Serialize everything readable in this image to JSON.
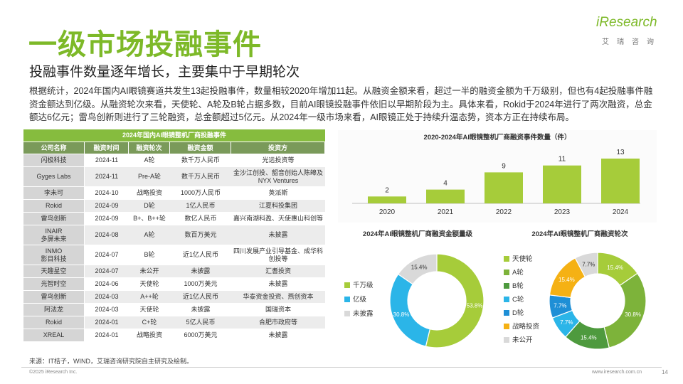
{
  "header": {
    "title": "一级市场投融事件",
    "subtitle": "投融事件数量逐年增长，主要集中于早期轮次",
    "logo_main": "iResearch",
    "logo_sub": "艾瑞咨询"
  },
  "paragraph": "根据统计，2024年国内AI眼镜赛道共发生13起投融事件，数量相较2020年增加11起。从融资金额来看，超过一半的融资金额为千万级别，但也有4起投融事件融资金额达到亿级。从融资轮次来看，天使轮、A轮及B轮占据多数，目前AI眼镜投融事件依旧以早期阶段为主。具体来看，Rokid于2024年进行了两次融资，总金额达6亿元；雷鸟创新则进行了三轮融资，总金额超过5亿元。从2024年一级市场来看，AI眼镜正处于持续升温态势，资本方正在持续布局。",
  "table": {
    "caption": "2024年国内AI眼镜整机厂商投融事件",
    "headers": [
      "公司名称",
      "融资时间",
      "融资轮次",
      "融资金额",
      "投资方"
    ],
    "rows": [
      [
        "闪极科技",
        "2024-11",
        "A轮",
        "数千万人民币",
        "光远投资等"
      ],
      [
        "Gyges Labs",
        "2024-11",
        "Pre-A轮",
        "数千万人民币",
        "金沙江创投、韶音创始人陈皞及NYX Ventures"
      ],
      [
        "李未可",
        "2024-10",
        "战略投资",
        "1000万人民币",
        "英派斯"
      ],
      [
        "Rokid",
        "2024-09",
        "D轮",
        "1亿人民币",
        "江夏科投集团"
      ],
      [
        "雷鸟创新",
        "2024-09",
        "B+、B++轮",
        "数亿人民币",
        "嘉兴南湖科盈、天使惠山科创等"
      ],
      [
        "INAIR\n多屏未来",
        "2024-08",
        "A轮",
        "数百万美元",
        "未披露"
      ],
      [
        "INMO\n影目科技",
        "2024-07",
        "B轮",
        "近1亿人民币",
        "四川发展产业引导基金、成华科创投等"
      ],
      [
        "天趣星空",
        "2024-07",
        "未公开",
        "未披露",
        "汇耆投资"
      ],
      [
        "光智时空",
        "2024-06",
        "天使轮",
        "1000万美元",
        "未披露"
      ],
      [
        "雷鸟创新",
        "2024-03",
        "A++轮",
        "近1亿人民币",
        "华泰资金投资、燕创资本"
      ],
      [
        "阿法龙",
        "2024-03",
        "天使轮",
        "未披露",
        "国瑞资本"
      ],
      [
        "Rokid",
        "2024-01",
        "C+轮",
        "5亿人民币",
        "合肥市政府等"
      ],
      [
        "XREAL",
        "2024-01",
        "战略投资",
        "6000万美元",
        "未披露"
      ]
    ]
  },
  "chart_data": [
    {
      "type": "bar",
      "title": "2020-2024年AI眼镜整机厂商融资事件数量（件）",
      "categories": [
        "2020",
        "2021",
        "2022",
        "2023",
        "2024"
      ],
      "values": [
        2,
        4,
        9,
        11,
        13
      ],
      "ylim": [
        0,
        13
      ],
      "color": "#A6CC3A"
    },
    {
      "type": "pie",
      "title": "2024年AI眼镜整机厂商融资金额量级",
      "labels": [
        "千万级",
        "亿级",
        "未披露"
      ],
      "values": [
        53.8,
        30.8,
        15.4
      ],
      "value_labels": [
        "53.8%",
        "30.8%",
        "15.4%"
      ],
      "colors": [
        "#A6CC3A",
        "#2BB5E8",
        "#D9D9D9"
      ],
      "legend": "left"
    },
    {
      "type": "pie",
      "title": "2024年AI眼镜整机厂商融资轮次",
      "labels": [
        "天使轮",
        "A轮",
        "B轮",
        "C轮",
        "D轮",
        "战略投资",
        "未公开"
      ],
      "values": [
        15.4,
        30.8,
        15.4,
        7.7,
        7.7,
        15.4,
        7.7
      ],
      "value_labels": [
        "15.4%",
        "30.8%",
        "15.4%",
        "7.7%",
        "7.7%",
        "15.4%",
        "7.7%"
      ],
      "colors": [
        "#A6CC3A",
        "#7DB33A",
        "#4E9A3E",
        "#2BB5E8",
        "#1E8FD6",
        "#F5B114",
        "#D9D9D9"
      ],
      "legend": "left"
    }
  ],
  "footer": {
    "source": "来源：IT桔子，WIND，艾瑞咨询研究院自主研究及绘制。",
    "copyright": "©2025 iResearch Inc.",
    "website": "www.iresearch.com.cn",
    "page": "14"
  }
}
